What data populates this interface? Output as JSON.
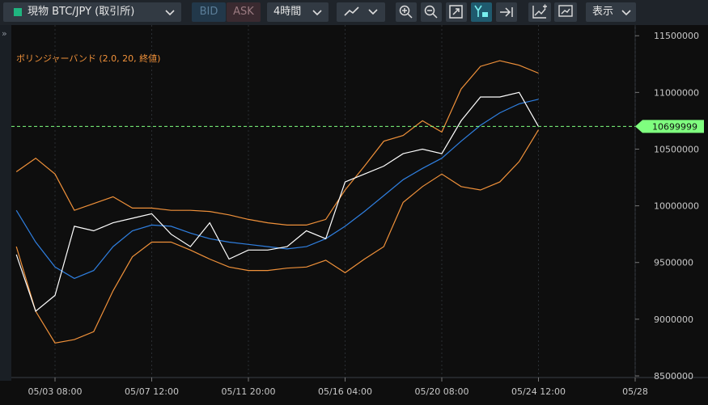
{
  "toolbar": {
    "symbol": "現物 BTC/JPY (取引所)",
    "bid": "BID",
    "ask": "ASK",
    "interval": "4時間",
    "display": "表示"
  },
  "chart_data": {
    "type": "line",
    "indicator_label": "ボリンジャーバンド (2.0, 20, 終値)",
    "categories": [
      null,
      null,
      "05/03 08:00",
      null,
      null,
      null,
      null,
      "05/07 12:00",
      null,
      null,
      null,
      null,
      "05/11 20:00",
      null,
      null,
      null,
      null,
      "05/16 04:00",
      null,
      null,
      null,
      null,
      "05/20 08:00",
      null,
      null,
      null,
      null,
      "05/24 12:00",
      null,
      null,
      null,
      null,
      "05/28"
    ],
    "series": [
      {
        "color": "#f0913a",
        "values": [
          10300000,
          10420000,
          10280000,
          9960000,
          10020000,
          10080000,
          9980000,
          9980000,
          9960000,
          9960000,
          9950000,
          9920000,
          9880000,
          9850000,
          9830000,
          9830000,
          9880000,
          10140000,
          10350000,
          10570000,
          10620000,
          10750000,
          10650000,
          11030000,
          11230000,
          11280000,
          11240000,
          11170000,
          null,
          null,
          null,
          null,
          null
        ]
      },
      {
        "color": "#f0913a",
        "values": [
          9640000,
          9070000,
          8790000,
          8820000,
          8890000,
          9250000,
          9550000,
          9680000,
          9680000,
          9610000,
          9530000,
          9460000,
          9430000,
          9430000,
          9450000,
          9460000,
          9520000,
          9410000,
          9530000,
          9640000,
          10030000,
          10170000,
          10280000,
          10170000,
          10140000,
          10210000,
          10390000,
          10670000,
          null,
          null,
          null,
          null,
          null
        ]
      },
      {
        "color": "#2f7fe0",
        "values": [
          9960000,
          9680000,
          9460000,
          9360000,
          9430000,
          9640000,
          9780000,
          9830000,
          9820000,
          9760000,
          9710000,
          9680000,
          9660000,
          9640000,
          9620000,
          9640000,
          9710000,
          9820000,
          9950000,
          10090000,
          10230000,
          10330000,
          10420000,
          10570000,
          10710000,
          10820000,
          10900000,
          10940000,
          null,
          null,
          null,
          null,
          null
        ]
      },
      {
        "color": "#ffffff",
        "values": [
          9570000,
          9070000,
          9210000,
          9820000,
          9780000,
          9850000,
          9890000,
          9930000,
          9750000,
          9640000,
          9850000,
          9530000,
          9610000,
          9610000,
          9640000,
          9780000,
          9710000,
          10210000,
          10280000,
          10350000,
          10460000,
          10500000,
          10460000,
          10750000,
          10960000,
          10960000,
          11000000,
          10700000,
          null,
          null,
          null,
          null,
          null
        ]
      }
    ],
    "current_price": 10699999,
    "current_price_color": "#7fff7f",
    "ylim": [
      8500000,
      11530000
    ],
    "yticks": [
      8500000,
      9000000,
      9500000,
      10000000,
      10500000,
      11000000,
      11500000
    ],
    "grid": true
  }
}
